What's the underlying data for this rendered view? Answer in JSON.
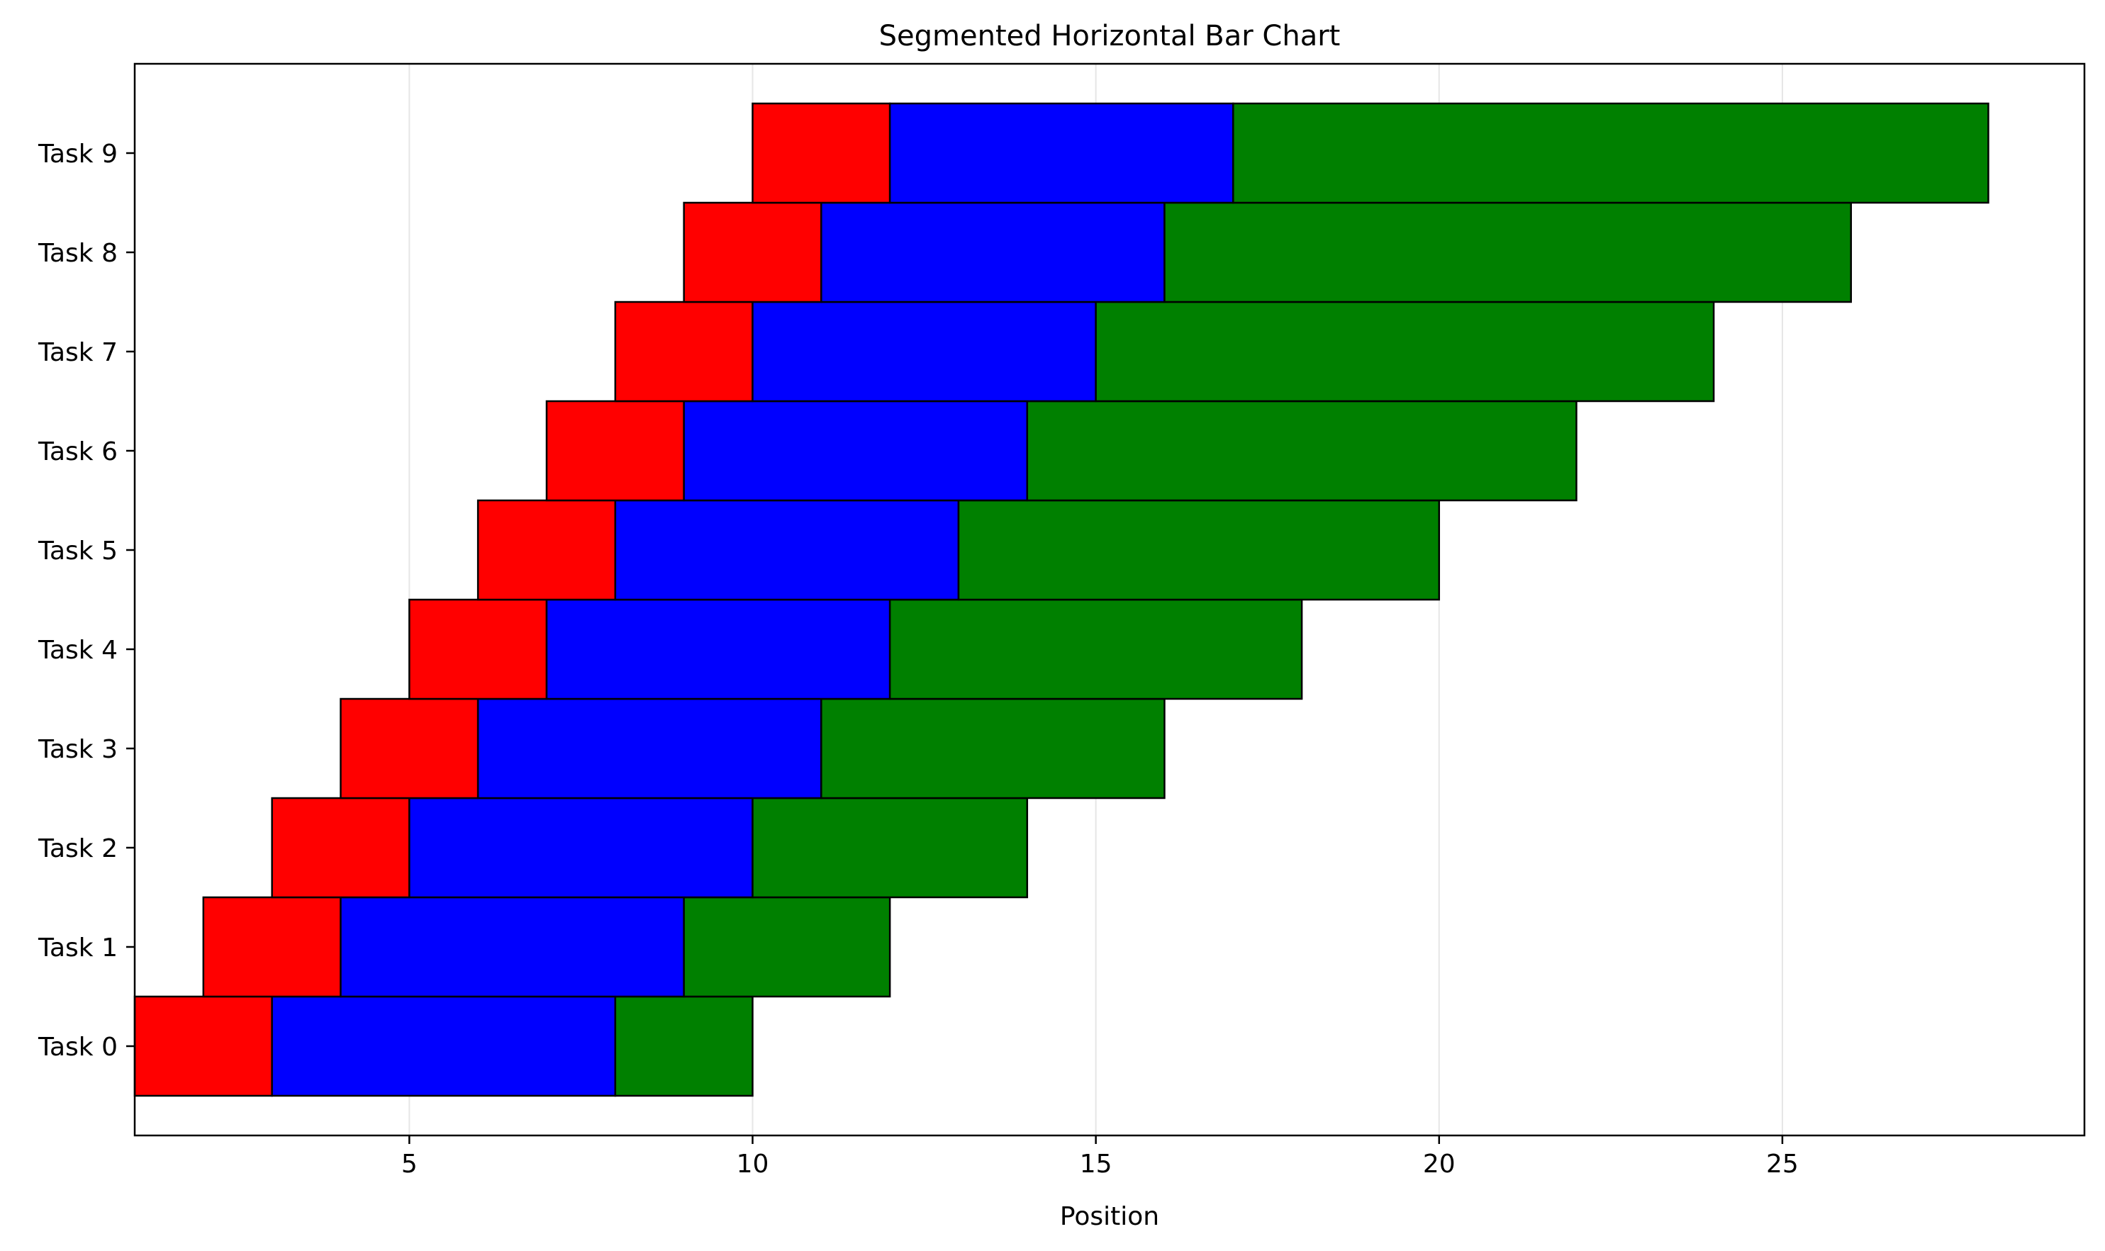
{
  "chart_data": {
    "type": "bar",
    "orientation": "horizontal",
    "stacked": true,
    "title": "Segmented Horizontal Bar Chart",
    "xlabel": "Position",
    "ylabel": "",
    "xlim": [
      1,
      29.4
    ],
    "xticks": [
      5,
      10,
      15,
      20,
      25
    ],
    "grid": "x",
    "legend": "none",
    "categories": [
      "Task 0",
      "Task 1",
      "Task 2",
      "Task 3",
      "Task 4",
      "Task 5",
      "Task 6",
      "Task 7",
      "Task 8",
      "Task 9"
    ],
    "bars": [
      {
        "category": "Task 0",
        "segments": [
          {
            "start": 1,
            "end": 3,
            "color": "#ff0000"
          },
          {
            "start": 3,
            "end": 8,
            "color": "#0000ff"
          },
          {
            "start": 8,
            "end": 10,
            "color": "#008000"
          }
        ]
      },
      {
        "category": "Task 1",
        "segments": [
          {
            "start": 2,
            "end": 4,
            "color": "#ff0000"
          },
          {
            "start": 4,
            "end": 9,
            "color": "#0000ff"
          },
          {
            "start": 9,
            "end": 12,
            "color": "#008000"
          }
        ]
      },
      {
        "category": "Task 2",
        "segments": [
          {
            "start": 3,
            "end": 5,
            "color": "#ff0000"
          },
          {
            "start": 5,
            "end": 10,
            "color": "#0000ff"
          },
          {
            "start": 10,
            "end": 14,
            "color": "#008000"
          }
        ]
      },
      {
        "category": "Task 3",
        "segments": [
          {
            "start": 4,
            "end": 6,
            "color": "#ff0000"
          },
          {
            "start": 6,
            "end": 11,
            "color": "#0000ff"
          },
          {
            "start": 11,
            "end": 16,
            "color": "#008000"
          }
        ]
      },
      {
        "category": "Task 4",
        "segments": [
          {
            "start": 5,
            "end": 7,
            "color": "#ff0000"
          },
          {
            "start": 7,
            "end": 12,
            "color": "#0000ff"
          },
          {
            "start": 12,
            "end": 18,
            "color": "#008000"
          }
        ]
      },
      {
        "category": "Task 5",
        "segments": [
          {
            "start": 6,
            "end": 8,
            "color": "#ff0000"
          },
          {
            "start": 8,
            "end": 13,
            "color": "#0000ff"
          },
          {
            "start": 13,
            "end": 20,
            "color": "#008000"
          }
        ]
      },
      {
        "category": "Task 6",
        "segments": [
          {
            "start": 7,
            "end": 9,
            "color": "#ff0000"
          },
          {
            "start": 9,
            "end": 14,
            "color": "#0000ff"
          },
          {
            "start": 14,
            "end": 22,
            "color": "#008000"
          }
        ]
      },
      {
        "category": "Task 7",
        "segments": [
          {
            "start": 8,
            "end": 10,
            "color": "#ff0000"
          },
          {
            "start": 10,
            "end": 15,
            "color": "#0000ff"
          },
          {
            "start": 15,
            "end": 24,
            "color": "#008000"
          }
        ]
      },
      {
        "category": "Task 8",
        "segments": [
          {
            "start": 9,
            "end": 11,
            "color": "#ff0000"
          },
          {
            "start": 11,
            "end": 16,
            "color": "#0000ff"
          },
          {
            "start": 16,
            "end": 26,
            "color": "#008000"
          }
        ]
      },
      {
        "category": "Task 9",
        "segments": [
          {
            "start": 10,
            "end": 12,
            "color": "#ff0000"
          },
          {
            "start": 12,
            "end": 17,
            "color": "#0000ff"
          },
          {
            "start": 17,
            "end": 28,
            "color": "#008000"
          }
        ]
      }
    ],
    "colors": {
      "background": "#ffffff",
      "axes": "#000000",
      "grid": "#e6e6e6",
      "bar_edge": "#000000"
    }
  }
}
